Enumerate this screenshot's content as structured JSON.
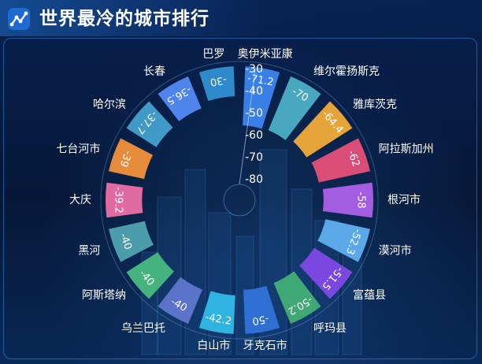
{
  "header": {
    "title": "世界最冷的城市排行"
  },
  "chart_data": {
    "type": "polar-bar",
    "categories": [
      "奥伊米亚康",
      "维尔霍扬斯克",
      "雅库茨克",
      "阿拉斯加州",
      "根河市",
      "漠河市",
      "富蕴县",
      "呼玛县",
      "牙克石市",
      "白山市",
      "乌兰巴托",
      "阿斯塔纳",
      "黑河",
      "大庆",
      "七台河市",
      "哈尔滨",
      "长春",
      "巴罗"
    ],
    "values": [
      -71.2,
      -70,
      -64.4,
      -62,
      -58,
      -52.3,
      -51.5,
      -50.2,
      -50,
      -42.2,
      -40,
      -40,
      -40,
      -39.2,
      -39,
      -37.7,
      -36.5,
      -30
    ],
    "colors": [
      "#3a7fe6",
      "#4aa7c0",
      "#e5a43a",
      "#d94d77",
      "#a45de0",
      "#5aa8e8",
      "#7a48e0",
      "#3fa874",
      "#2e6fd4",
      "#2fb3e0",
      "#5b73c9",
      "#46b37e",
      "#4c9dab",
      "#e26aa2",
      "#e68a3c",
      "#3f9ac7",
      "#4f84ec",
      "#2f8acb"
    ],
    "radial_ticks": [
      -30,
      -40,
      -50,
      -60,
      -70,
      -80
    ],
    "axis_range": [
      -80,
      -30
    ]
  }
}
